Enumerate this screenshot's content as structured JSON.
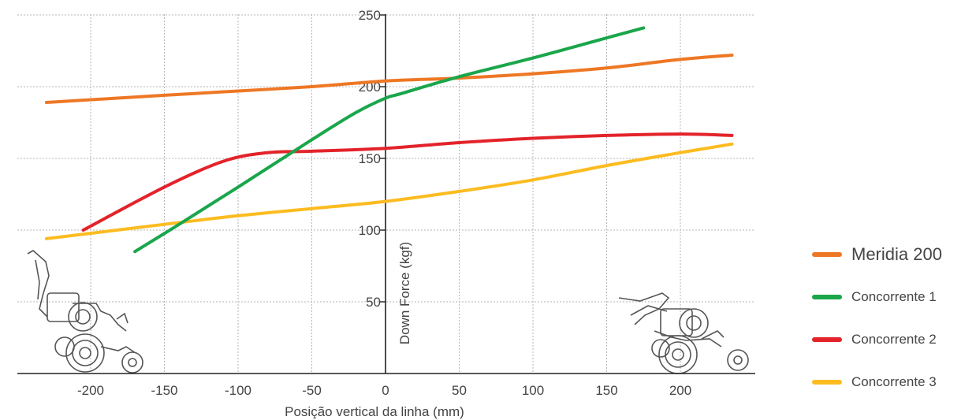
{
  "chart_data": {
    "type": "line",
    "xlabel": "Posição vertical da linha (mm)",
    "ylabel": "Down Force (kgf)",
    "xlim": [
      -235,
      240
    ],
    "ylim": [
      0,
      250
    ],
    "x_ticks": [
      -200,
      -150,
      -100,
      -50,
      0,
      50,
      100,
      150,
      200
    ],
    "y_ticks": [
      50,
      100,
      150,
      200,
      250
    ],
    "grid": true,
    "legend_position": "right",
    "series": [
      {
        "name": "Meridia 200",
        "color": "#EE7724",
        "points": [
          [
            -230,
            189
          ],
          [
            -150,
            194
          ],
          [
            -100,
            197
          ],
          [
            -50,
            200
          ],
          [
            0,
            204
          ],
          [
            50,
            206
          ],
          [
            100,
            209
          ],
          [
            150,
            213
          ],
          [
            200,
            219
          ],
          [
            235,
            222
          ]
        ]
      },
      {
        "name": "Concorrente 1",
        "color": "#1AA64B",
        "points": [
          [
            -170,
            85
          ],
          [
            -140,
            104
          ],
          [
            -100,
            130
          ],
          [
            -50,
            163
          ],
          [
            -20,
            182
          ],
          [
            0,
            192
          ],
          [
            10,
            195
          ],
          [
            50,
            207
          ],
          [
            100,
            220
          ],
          [
            150,
            234
          ],
          [
            175,
            241
          ]
        ]
      },
      {
        "name": "Concorrente 2",
        "color": "#E3232A",
        "points": [
          [
            -205,
            100
          ],
          [
            -150,
            130
          ],
          [
            -110,
            148
          ],
          [
            -80,
            154
          ],
          [
            -50,
            155
          ],
          [
            0,
            157
          ],
          [
            50,
            161
          ],
          [
            100,
            164
          ],
          [
            150,
            166
          ],
          [
            200,
            167
          ],
          [
            235,
            166
          ]
        ]
      },
      {
        "name": "Concorrente 3",
        "color": "#FCBC20",
        "points": [
          [
            -230,
            94
          ],
          [
            -150,
            104
          ],
          [
            -100,
            110
          ],
          [
            -50,
            115
          ],
          [
            0,
            120
          ],
          [
            50,
            127
          ],
          [
            100,
            135
          ],
          [
            150,
            145
          ],
          [
            200,
            154
          ],
          [
            235,
            160
          ]
        ]
      }
    ]
  },
  "legend": {
    "items": [
      {
        "label": "Meridia 200",
        "color": "#EE7724"
      },
      {
        "label": "Concorrente 1",
        "color": "#1AA64B"
      },
      {
        "label": "Concorrente 2",
        "color": "#E3232A"
      },
      {
        "label": "Concorrente 3",
        "color": "#FCBC20"
      }
    ]
  }
}
